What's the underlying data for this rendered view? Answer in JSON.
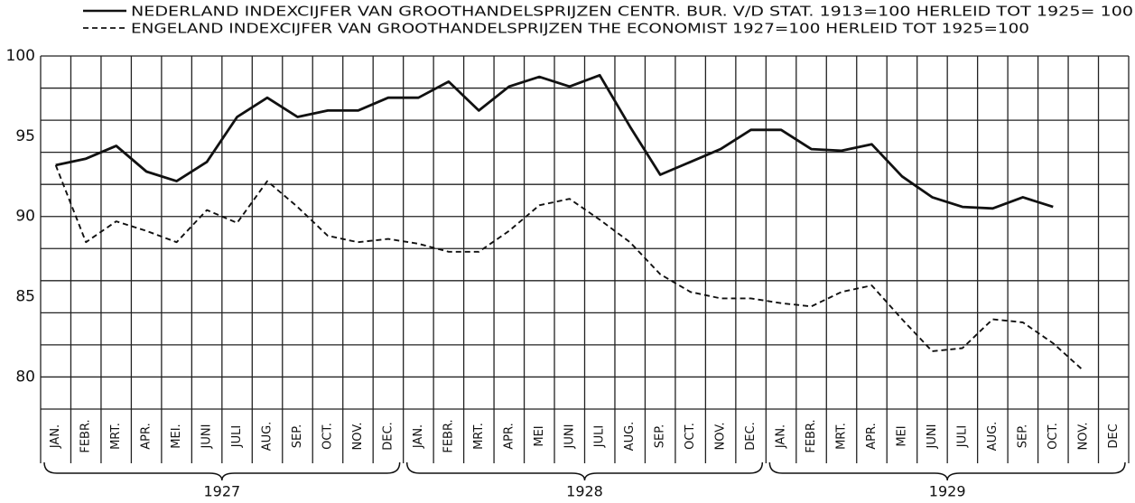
{
  "chart_data": {
    "type": "line",
    "categories": [
      "JAN.",
      "FEBR.",
      "MRT.",
      "APR.",
      "MEI.",
      "JUNI",
      "JULI",
      "AUG.",
      "SEP.",
      "OCT.",
      "NOV.",
      "DEC.",
      "JAN.",
      "FEBR.",
      "MRT.",
      "APR.",
      "MEI",
      "JUNI",
      "JULI",
      "AUG.",
      "SEP.",
      "OCT.",
      "NOV.",
      "DEC.",
      "JAN.",
      "FEBR.",
      "MRT.",
      "APR.",
      "MEI",
      "JUNI",
      "JULI",
      "AUG.",
      "SEP.",
      "OCT.",
      "NOV.",
      "DEC"
    ],
    "year_groups": [
      "1927",
      "1928",
      "1929"
    ],
    "series": [
      {
        "name": "NEDERLAND INDEXCIJFER VAN GROOTHANDELSPRIJZEN CENTR. BUR. V/D STAT. 1913=100 HERLEID TOT 1925= 100",
        "color": "#111111",
        "line_style": "solid",
        "values": [
          93.2,
          93.6,
          94.4,
          92.8,
          92.2,
          93.4,
          96.2,
          97.4,
          96.2,
          96.6,
          96.6,
          97.4,
          97.4,
          98.4,
          96.6,
          98.1,
          98.7,
          98.1,
          98.8,
          95.6,
          92.6,
          93.4,
          94.2,
          95.4,
          95.4,
          94.2,
          94.1,
          94.5,
          92.5,
          91.2,
          90.6,
          90.5,
          91.2,
          90.6,
          null,
          null
        ]
      },
      {
        "name": "ENGELAND INDEXCIJFER VAN GROOTHANDELSPRIJZEN THE ECONOMIST 1927=100 HERLEID TOT 1925=100",
        "color": "#111111",
        "line_style": "dashed",
        "values": [
          93.2,
          88.4,
          89.7,
          89.1,
          88.4,
          90.4,
          89.6,
          92.2,
          90.6,
          88.8,
          88.4,
          88.6,
          88.3,
          87.8,
          87.8,
          89.1,
          90.7,
          91.1,
          89.8,
          88.4,
          86.4,
          85.3,
          84.9,
          84.9,
          84.6,
          84.4,
          85.3,
          85.7,
          83.6,
          81.6,
          81.8,
          83.6,
          83.4,
          82.1,
          80.4,
          null
        ]
      }
    ],
    "ylim": [
      78,
      100
    ],
    "yticks": [
      80,
      85,
      90,
      95,
      100
    ],
    "ygrid": [
      78,
      80,
      82,
      84,
      86,
      88,
      90,
      92,
      94,
      96,
      98,
      100
    ],
    "grid": true
  }
}
